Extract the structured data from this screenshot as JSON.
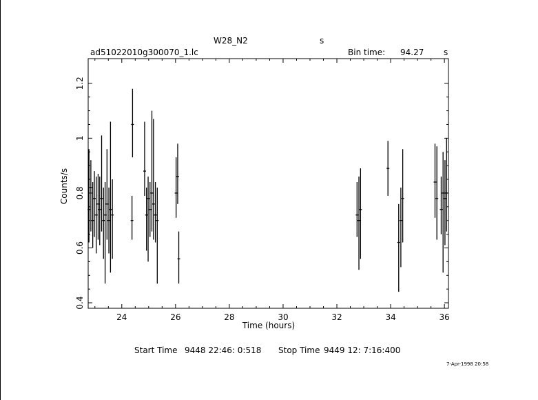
{
  "header": {
    "object_name": "W28_N2",
    "object_unit": "s",
    "file_name": "ad51022010g300070_1.lc",
    "bin_label": "Bin time:",
    "bin_value": "94.27",
    "bin_unit": "s"
  },
  "footer": {
    "start_label": "Start Time",
    "start_value": "9448 22:46: 0:518",
    "stop_label": "Stop Time",
    "stop_value": "9449 12: 7:16:400",
    "date_stamp": "7-Apr-1998 20:58"
  },
  "chart_data": {
    "type": "scatter",
    "xlabel": "Time (hours)",
    "ylabel": "Counts/s",
    "xlim": [
      22.75,
      36.15
    ],
    "ylim": [
      0.38,
      1.29
    ],
    "xticks": [
      24,
      26,
      28,
      30,
      32,
      34,
      36
    ],
    "yticks": [
      0.4,
      0.6,
      0.8,
      1,
      1.2
    ],
    "ytick_labels": [
      "0.4",
      "0.6",
      "0.8",
      "1",
      "1.2"
    ],
    "series": [
      {
        "points": [
          {
            "x": 22.78,
            "y": 0.74,
            "lo": 0.62,
            "hi": 0.96
          },
          {
            "x": 22.85,
            "y": 0.82,
            "lo": 0.66,
            "hi": 0.92
          },
          {
            "x": 22.92,
            "y": 0.7,
            "lo": 0.6,
            "hi": 0.84
          },
          {
            "x": 22.98,
            "y": 0.78,
            "lo": 0.64,
            "hi": 0.88
          },
          {
            "x": 23.05,
            "y": 0.72,
            "lo": 0.58,
            "hi": 0.86
          },
          {
            "x": 23.12,
            "y": 0.76,
            "lo": 0.63,
            "hi": 0.87
          },
          {
            "x": 23.18,
            "y": 0.74,
            "lo": 0.61,
            "hi": 0.86
          },
          {
            "x": 23.25,
            "y": 0.78,
            "lo": 0.66,
            "hi": 1.01
          },
          {
            "x": 23.32,
            "y": 0.7,
            "lo": 0.56,
            "hi": 0.82
          },
          {
            "x": 23.38,
            "y": 0.72,
            "lo": 0.47,
            "hi": 0.84
          },
          {
            "x": 23.45,
            "y": 0.76,
            "lo": 0.63,
            "hi": 0.96
          },
          {
            "x": 23.52,
            "y": 0.7,
            "lo": 0.58,
            "hi": 0.82
          },
          {
            "x": 23.58,
            "y": 0.74,
            "lo": 0.51,
            "hi": 1.06
          },
          {
            "x": 23.65,
            "y": 0.72,
            "lo": 0.56,
            "hi": 0.85
          },
          {
            "x": 24.38,
            "y": 0.7,
            "lo": 0.63,
            "hi": 0.79
          },
          {
            "x": 24.4,
            "y": 1.05,
            "lo": 0.93,
            "hi": 1.18
          },
          {
            "x": 24.85,
            "y": 0.88,
            "lo": 0.79,
            "hi": 1.06
          },
          {
            "x": 24.92,
            "y": 0.72,
            "lo": 0.59,
            "hi": 0.82
          },
          {
            "x": 24.98,
            "y": 0.78,
            "lo": 0.55,
            "hi": 0.86
          },
          {
            "x": 25.05,
            "y": 0.74,
            "lo": 0.64,
            "hi": 0.84
          },
          {
            "x": 25.12,
            "y": 0.8,
            "lo": 0.66,
            "hi": 1.1
          },
          {
            "x": 25.18,
            "y": 0.76,
            "lo": 0.63,
            "hi": 1.07
          },
          {
            "x": 25.25,
            "y": 0.72,
            "lo": 0.62,
            "hi": 0.84
          },
          {
            "x": 25.32,
            "y": 0.7,
            "lo": 0.47,
            "hi": 0.82
          },
          {
            "x": 26.02,
            "y": 0.8,
            "lo": 0.71,
            "hi": 0.93
          },
          {
            "x": 26.08,
            "y": 0.86,
            "lo": 0.76,
            "hi": 0.98
          },
          {
            "x": 26.12,
            "y": 0.56,
            "lo": 0.47,
            "hi": 0.66
          },
          {
            "x": 32.75,
            "y": 0.72,
            "lo": 0.64,
            "hi": 0.84
          },
          {
            "x": 32.82,
            "y": 0.7,
            "lo": 0.52,
            "hi": 0.86
          },
          {
            "x": 32.88,
            "y": 0.74,
            "lo": 0.56,
            "hi": 0.89
          },
          {
            "x": 33.9,
            "y": 0.89,
            "lo": 0.79,
            "hi": 0.99
          },
          {
            "x": 34.3,
            "y": 0.62,
            "lo": 0.44,
            "hi": 0.76
          },
          {
            "x": 34.38,
            "y": 0.7,
            "lo": 0.53,
            "hi": 0.82
          },
          {
            "x": 34.45,
            "y": 0.78,
            "lo": 0.62,
            "hi": 0.96
          },
          {
            "x": 35.65,
            "y": 0.84,
            "lo": 0.71,
            "hi": 0.98
          },
          {
            "x": 35.72,
            "y": 0.78,
            "lo": 0.63,
            "hi": 0.97
          },
          {
            "x": 35.88,
            "y": 0.74,
            "lo": 0.65,
            "hi": 0.86
          },
          {
            "x": 35.95,
            "y": 0.8,
            "lo": 0.51,
            "hi": 0.95
          },
          {
            "x": 36.02,
            "y": 0.78,
            "lo": 0.61,
            "hi": 0.92
          },
          {
            "x": 36.08,
            "y": 0.8,
            "lo": 0.66,
            "hi": 1.0
          }
        ]
      }
    ]
  }
}
